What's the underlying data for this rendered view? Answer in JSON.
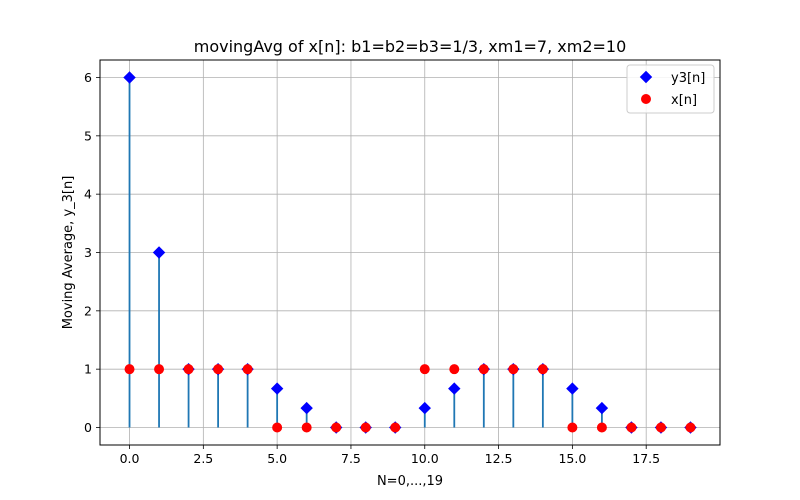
{
  "chart_data": {
    "type": "stem",
    "title": "movingAvg of x[n]: b1=b2=b3=1/3, xm1=7, xm2=10",
    "xlabel": "N=0,...,19",
    "ylabel": "Moving Average, y_3[n]",
    "xlim": [
      -1.0,
      20.0
    ],
    "ylim": [
      -0.3,
      6.3
    ],
    "xticks": [
      0.0,
      2.5,
      5.0,
      7.5,
      10.0,
      12.5,
      15.0,
      17.5
    ],
    "xtick_labels": [
      "0.0",
      "2.5",
      "5.0",
      "7.5",
      "10.0",
      "12.5",
      "15.0",
      "17.5"
    ],
    "yticks": [
      0,
      1,
      2,
      3,
      4,
      5,
      6
    ],
    "ytick_labels": [
      "0",
      "1",
      "2",
      "3",
      "4",
      "5",
      "6"
    ],
    "grid": true,
    "legend_position": "top-right",
    "x": [
      0,
      1,
      2,
      3,
      4,
      5,
      6,
      7,
      8,
      9,
      10,
      11,
      12,
      13,
      14,
      15,
      16,
      17,
      18,
      19
    ],
    "series": [
      {
        "name": "y3[n]",
        "marker": "diamond",
        "color": "#0000ff",
        "stem_color": "#1f77b4",
        "values": [
          6,
          3,
          1,
          1,
          1,
          0.667,
          0.333,
          0,
          0,
          0,
          0.333,
          0.667,
          1,
          1,
          1,
          0.667,
          0.333,
          0,
          0,
          0
        ]
      },
      {
        "name": "x[n]",
        "marker": "circle",
        "color": "#ff0000",
        "values": [
          1,
          1,
          1,
          1,
          1,
          0,
          0,
          0,
          0,
          0,
          1,
          1,
          1,
          1,
          1,
          0,
          0,
          0,
          0,
          0
        ]
      }
    ]
  }
}
